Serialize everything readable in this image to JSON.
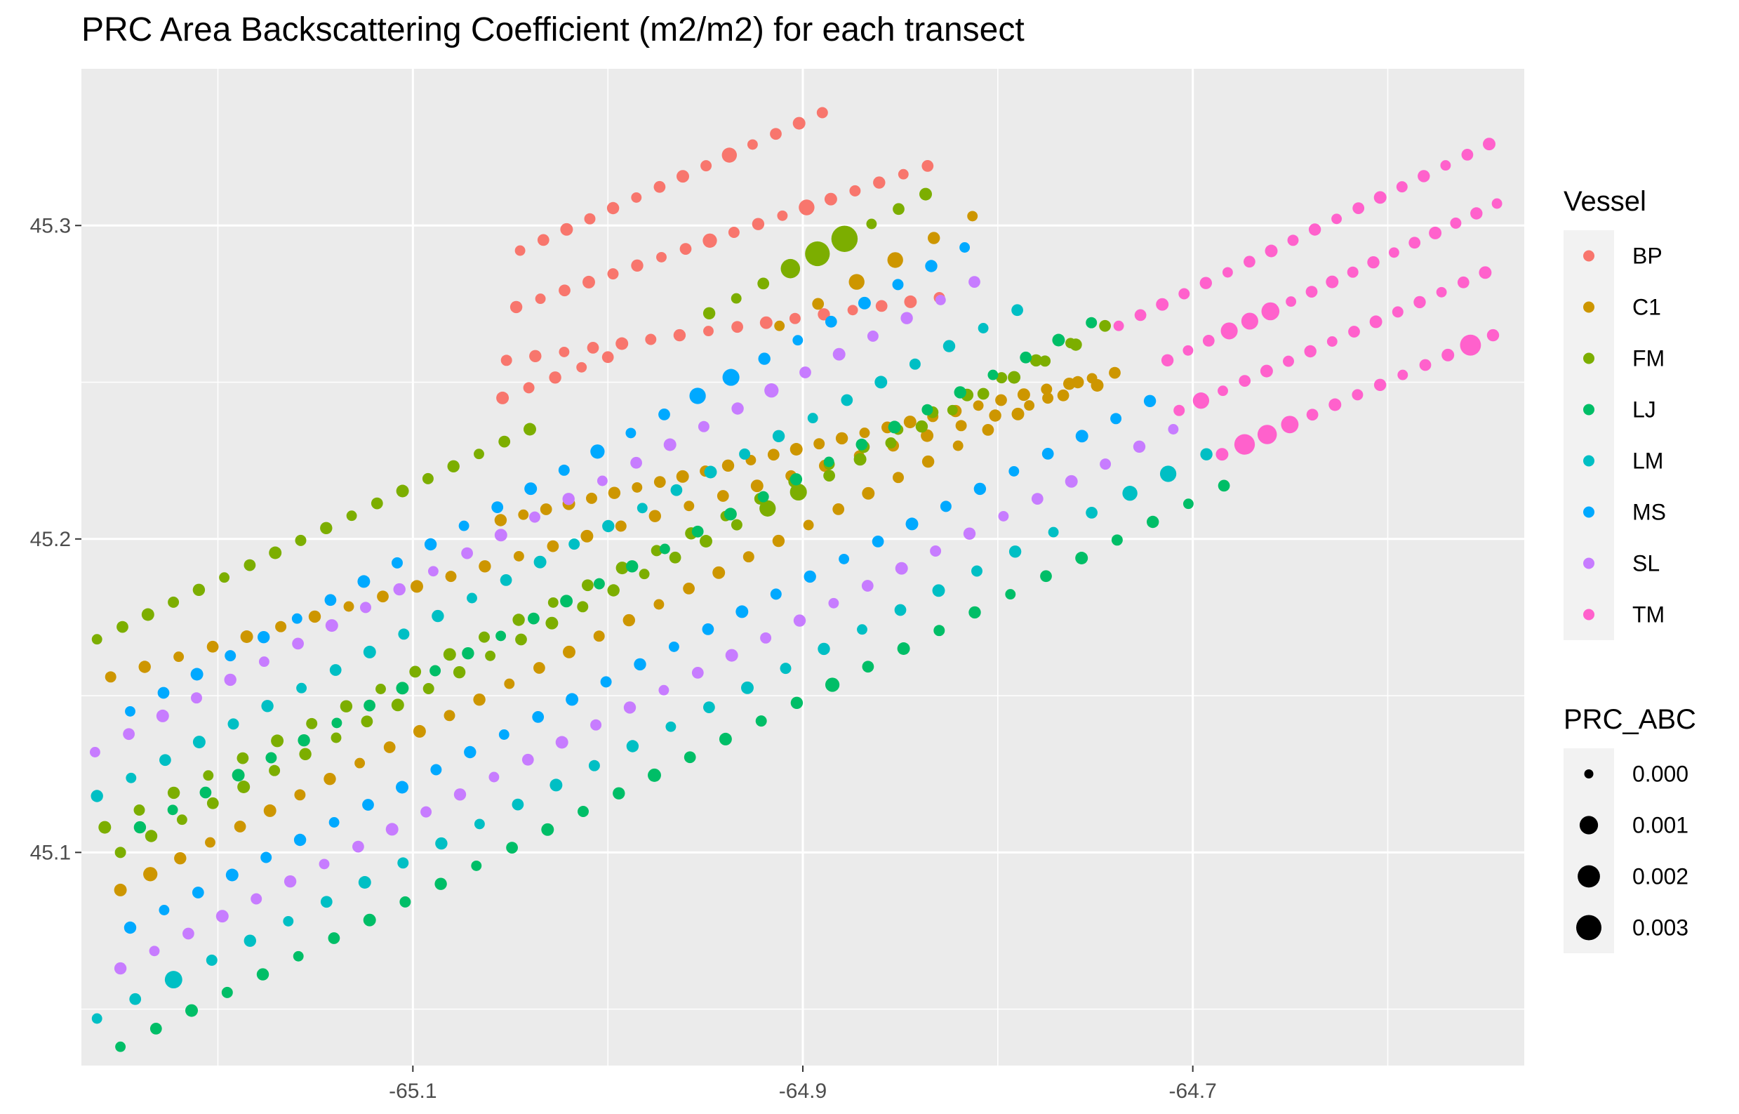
{
  "chart_data": {
    "type": "scatter",
    "title": "PRC Area Backscattering Coefficient (m2/m2) for each transect",
    "xlabel": "",
    "ylabel": "",
    "xlim": [
      -65.27,
      -64.53
    ],
    "ylim": [
      45.032,
      45.35
    ],
    "x_major_ticks": [
      -65.1,
      -64.9,
      -64.7
    ],
    "x_tick_labels": [
      "-65.1",
      "-64.9",
      "-64.7"
    ],
    "x_minor_ticks": [
      -65.2,
      -65.0,
      -64.8,
      -64.6
    ],
    "y_major_ticks": [
      45.1,
      45.2,
      45.3
    ],
    "y_tick_labels": [
      "45.1",
      "45.2",
      "45.3"
    ],
    "y_minor_ticks": [
      45.05,
      45.15,
      45.25
    ],
    "grid": true,
    "background": "#ebebeb",
    "legend_placement": "right",
    "color_legend": {
      "title": "Vessel",
      "entries": [
        {
          "name": "BP",
          "color": "#f8766d"
        },
        {
          "name": "C1",
          "color": "#cd9600"
        },
        {
          "name": "FM",
          "color": "#7cae00"
        },
        {
          "name": "LJ",
          "color": "#00be67"
        },
        {
          "name": "LM",
          "color": "#00bfc4"
        },
        {
          "name": "MS",
          "color": "#00a9ff"
        },
        {
          "name": "SL",
          "color": "#c77cff"
        },
        {
          "name": "TM",
          "color": "#ff61cc"
        }
      ]
    },
    "size_legend": {
      "title": "PRC_ABC",
      "entries": [
        {
          "label": "0.000",
          "value": 0.0
        },
        {
          "label": "0.001",
          "value": 0.001
        },
        {
          "label": "0.002",
          "value": 0.002
        },
        {
          "label": "0.003",
          "value": 0.003
        }
      ]
    },
    "series": [
      {
        "name": "BP",
        "color": "#f8766d",
        "transects": [
          {
            "x0": -65.045,
            "y0": 45.292,
            "x1": -64.89,
            "y1": 45.336,
            "n": 14
          },
          {
            "x0": -65.047,
            "y0": 45.274,
            "x1": -64.836,
            "y1": 45.319,
            "n": 18
          },
          {
            "x0": -65.052,
            "y0": 45.257,
            "x1": -64.83,
            "y1": 45.277,
            "n": 16
          },
          {
            "x0": -65.054,
            "y0": 45.245,
            "x1": -65.0,
            "y1": 45.258,
            "n": 5
          }
        ],
        "boosts": [
          [
            0,
            9,
            0.0004
          ],
          [
            1,
            12,
            0.0005
          ],
          [
            1,
            8,
            0.0003
          ]
        ]
      },
      {
        "name": "C1",
        "color": "#cd9600",
        "transects": [
          {
            "x0": -64.912,
            "y0": 45.268,
            "x1": -64.813,
            "y1": 45.303,
            "n": 6
          },
          {
            "x0": -65.055,
            "y0": 45.206,
            "x1": -64.74,
            "y1": 45.253,
            "n": 28
          },
          {
            "x0": -65.255,
            "y0": 45.156,
            "x1": -64.749,
            "y1": 45.249,
            "n": 30
          },
          {
            "x0": -65.25,
            "y0": 45.088,
            "x1": -64.759,
            "y1": 45.25,
            "n": 33
          }
        ],
        "boosts": [
          [
            0,
            2,
            0.0005
          ],
          [
            0,
            3,
            0.0005
          ],
          [
            3,
            1,
            0.0003
          ]
        ]
      },
      {
        "name": "FM",
        "color": "#7cae00",
        "transects": [
          {
            "x0": -65.262,
            "y0": 45.168,
            "x1": -65.04,
            "y1": 45.235,
            "n": 18
          },
          {
            "x0": -64.948,
            "y0": 45.272,
            "x1": -64.837,
            "y1": 45.31,
            "n": 9
          },
          {
            "x0": -65.25,
            "y0": 45.1,
            "x1": -64.76,
            "y1": 45.262,
            "n": 32
          },
          {
            "x0": -65.258,
            "y0": 45.108,
            "x1": -64.745,
            "y1": 45.268,
            "n": 30
          }
        ],
        "boosts": [
          [
            1,
            3,
            0.0012
          ],
          [
            1,
            4,
            0.0028
          ],
          [
            1,
            5,
            0.0034
          ],
          [
            2,
            21,
            0.0006
          ],
          [
            2,
            22,
            0.0007
          ]
        ]
      },
      {
        "name": "LJ",
        "color": "#00be67",
        "transects": [
          {
            "x0": -65.25,
            "y0": 45.038,
            "x1": -64.684,
            "y1": 45.217,
            "n": 32
          },
          {
            "x0": -65.24,
            "y0": 45.108,
            "x1": -64.752,
            "y1": 45.269,
            "n": 30
          }
        ],
        "boosts": [
          [
            0,
            15,
            0.0002
          ],
          [
            0,
            20,
            0.0003
          ]
        ]
      },
      {
        "name": "LM",
        "color": "#00bfc4",
        "transects": [
          {
            "x0": -65.262,
            "y0": 45.047,
            "x1": -64.693,
            "y1": 45.227,
            "n": 30
          },
          {
            "x0": -65.262,
            "y0": 45.118,
            "x1": -64.79,
            "y1": 45.273,
            "n": 28
          }
        ],
        "boosts": [
          [
            0,
            2,
            0.0008
          ],
          [
            0,
            28,
            0.0006
          ],
          [
            0,
            27,
            0.0004
          ]
        ]
      },
      {
        "name": "MS",
        "color": "#00a9ff",
        "transects": [
          {
            "x0": -65.245,
            "y0": 45.145,
            "x1": -64.817,
            "y1": 45.293,
            "n": 26
          },
          {
            "x0": -65.245,
            "y0": 45.076,
            "x1": -64.722,
            "y1": 45.244,
            "n": 31
          }
        ],
        "boosts": [
          [
            0,
            17,
            0.0006
          ],
          [
            0,
            18,
            0.0007
          ],
          [
            0,
            14,
            0.0003
          ]
        ]
      },
      {
        "name": "SL",
        "color": "#c77cff",
        "transects": [
          {
            "x0": -65.263,
            "y0": 45.132,
            "x1": -64.812,
            "y1": 45.282,
            "n": 27
          },
          {
            "x0": -65.25,
            "y0": 45.063,
            "x1": -64.71,
            "y1": 45.235,
            "n": 32
          }
        ],
        "boosts": [
          [
            0,
            20,
            0.0003
          ]
        ]
      },
      {
        "name": "TM",
        "color": "#ff61cc",
        "transects": [
          {
            "x0": -64.738,
            "y0": 45.268,
            "x1": -64.548,
            "y1": 45.326,
            "n": 18
          },
          {
            "x0": -64.713,
            "y0": 45.257,
            "x1": -64.544,
            "y1": 45.307,
            "n": 17
          },
          {
            "x0": -64.707,
            "y0": 45.241,
            "x1": -64.55,
            "y1": 45.285,
            "n": 15
          },
          {
            "x0": -64.685,
            "y0": 45.227,
            "x1": -64.546,
            "y1": 45.265,
            "n": 13
          }
        ],
        "boosts": [
          [
            1,
            3,
            0.0007
          ],
          [
            1,
            4,
            0.0007
          ],
          [
            1,
            5,
            0.0009
          ],
          [
            2,
            1,
            0.0006
          ],
          [
            3,
            1,
            0.0015
          ],
          [
            3,
            2,
            0.0012
          ],
          [
            3,
            3,
            0.0008
          ],
          [
            3,
            11,
            0.0016
          ]
        ]
      }
    ]
  }
}
